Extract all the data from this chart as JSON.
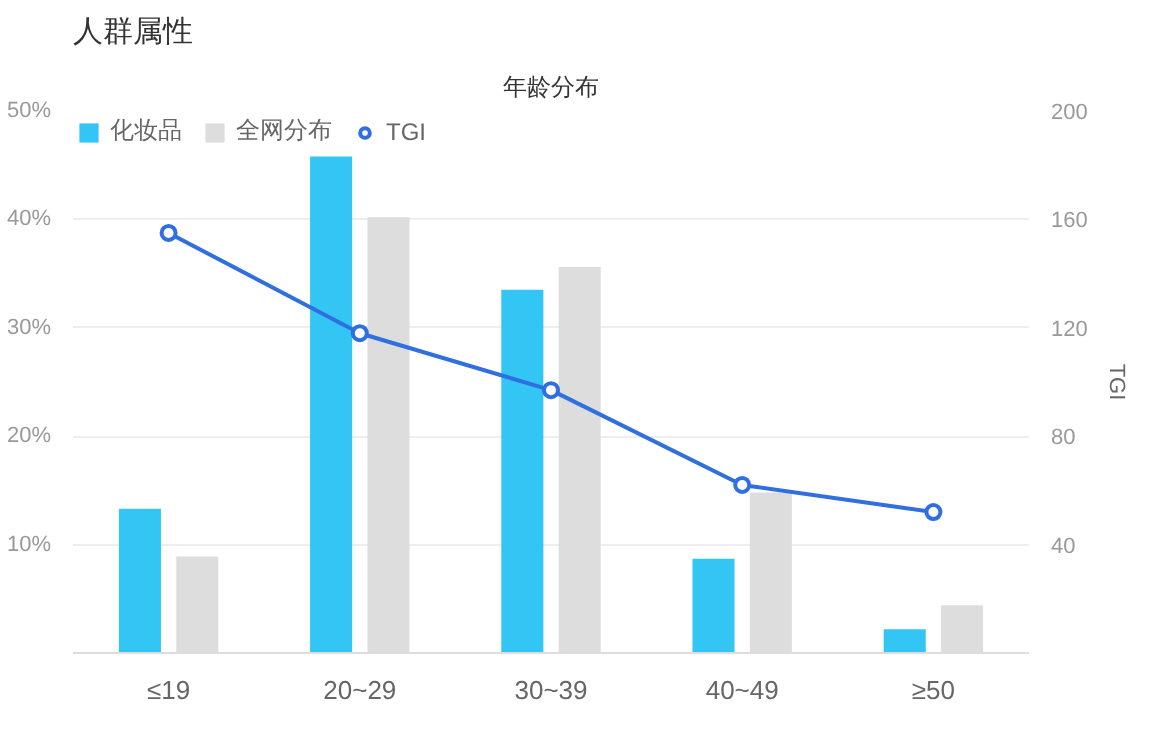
{
  "chart_data": {
    "type": "bar",
    "title": "人群属性",
    "subtitle": "年龄分布",
    "y2label": "TGI",
    "categories": [
      "≤19",
      "20~29",
      "30~39",
      "40~49",
      "≥50"
    ],
    "series": [
      {
        "name": "化妆品",
        "color": "#33c5f3",
        "values": [
          13.3,
          45.8,
          33.5,
          8.7,
          2.2
        ]
      },
      {
        "name": "全网分布",
        "color": "#dddddd",
        "values": [
          8.9,
          40.2,
          35.6,
          14.8,
          4.4
        ]
      },
      {
        "name": "TGI",
        "type": "line",
        "axis": "y2",
        "color": "#2f6fe0",
        "values": [
          155,
          118,
          97,
          62,
          52
        ]
      }
    ],
    "ylim": [
      0,
      50
    ],
    "yticks": [
      {
        "value": 10,
        "label": "10%"
      },
      {
        "value": 20,
        "label": "20%"
      },
      {
        "value": 30,
        "label": "30%"
      },
      {
        "value": 40,
        "label": "40%"
      },
      {
        "value": 50,
        "label": "50%"
      }
    ],
    "y2lim": [
      0,
      200
    ],
    "y2ticks": [
      40,
      80,
      120,
      160,
      200
    ],
    "grid": "y",
    "legend": "top left",
    "marker": "circle"
  }
}
